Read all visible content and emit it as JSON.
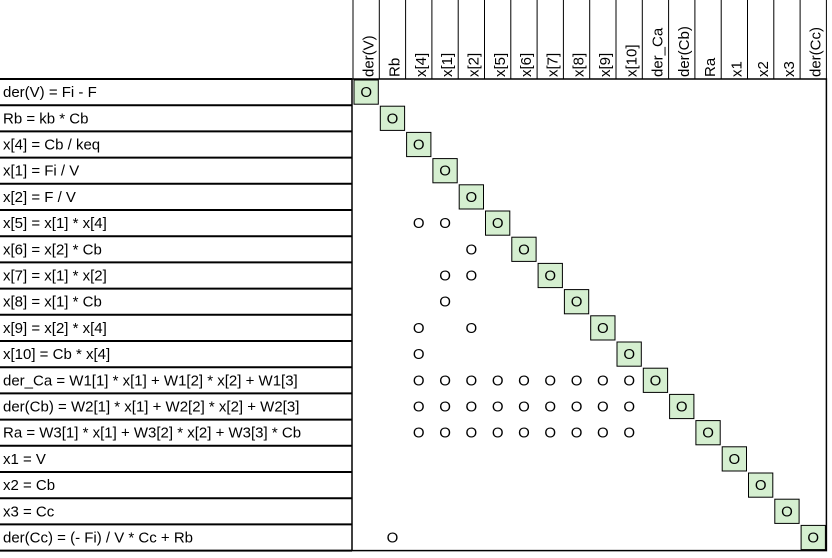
{
  "mark": "O",
  "columns": [
    "der(V)",
    "Rb",
    "x[4]",
    "x[1]",
    "x[2]",
    "x[5]",
    "x[6]",
    "x[7]",
    "x[8]",
    "x[9]",
    "x[10]",
    "der_Ca",
    "der(Cb)",
    "Ra",
    "x1",
    "x2",
    "x3",
    "der(Cc)"
  ],
  "rows": [
    {
      "label": "der(V) = Fi - F",
      "solves": "der(V)",
      "depends": []
    },
    {
      "label": "Rb = kb * Cb",
      "solves": "Rb",
      "depends": []
    },
    {
      "label": "x[4] = Cb / keq",
      "solves": "x[4]",
      "depends": []
    },
    {
      "label": "x[1] = Fi / V",
      "solves": "x[1]",
      "depends": []
    },
    {
      "label": "x[2] = F / V",
      "solves": "x[2]",
      "depends": []
    },
    {
      "label": "x[5] = x[1] * x[4]",
      "solves": "x[5]",
      "depends": [
        "x[4]",
        "x[1]"
      ]
    },
    {
      "label": "x[6] = x[2] * Cb",
      "solves": "x[6]",
      "depends": [
        "x[2]"
      ]
    },
    {
      "label": "x[7] = x[1] * x[2]",
      "solves": "x[7]",
      "depends": [
        "x[1]",
        "x[2]"
      ]
    },
    {
      "label": "x[8] = x[1] * Cb",
      "solves": "x[8]",
      "depends": [
        "x[1]"
      ]
    },
    {
      "label": "x[9] = x[2] * x[4]",
      "solves": "x[9]",
      "depends": [
        "x[4]",
        "x[2]"
      ]
    },
    {
      "label": "x[10] = Cb * x[4]",
      "solves": "x[10]",
      "depends": [
        "x[4]"
      ]
    },
    {
      "label": "der_Ca = W1[1] * x[1] + W1[2] * x[2] + W1[3]",
      "solves": "der_Ca",
      "depends": [
        "x[4]",
        "x[1]",
        "x[2]",
        "x[5]",
        "x[6]",
        "x[7]",
        "x[8]",
        "x[9]",
        "x[10]"
      ]
    },
    {
      "label": "der(Cb) = W2[1] * x[1] + W2[2] * x[2] + W2[3]",
      "solves": "der(Cb)",
      "depends": [
        "x[4]",
        "x[1]",
        "x[2]",
        "x[5]",
        "x[6]",
        "x[7]",
        "x[8]",
        "x[9]",
        "x[10]"
      ]
    },
    {
      "label": "Ra = W3[1] * x[1] + W3[2] * x[2] + W3[3] * Cb",
      "solves": "Ra",
      "depends": [
        "x[4]",
        "x[1]",
        "x[2]",
        "x[5]",
        "x[6]",
        "x[7]",
        "x[8]",
        "x[9]",
        "x[10]"
      ]
    },
    {
      "label": "x1 = V",
      "solves": "x1",
      "depends": []
    },
    {
      "label": "x2 = Cb",
      "solves": "x2",
      "depends": []
    },
    {
      "label": "x3 = Cc",
      "solves": "x3",
      "depends": []
    },
    {
      "label": "der(Cc) = (- Fi) / V * Cc + Rb",
      "solves": "der(Cc)",
      "depends": [
        "Rb"
      ]
    }
  ]
}
